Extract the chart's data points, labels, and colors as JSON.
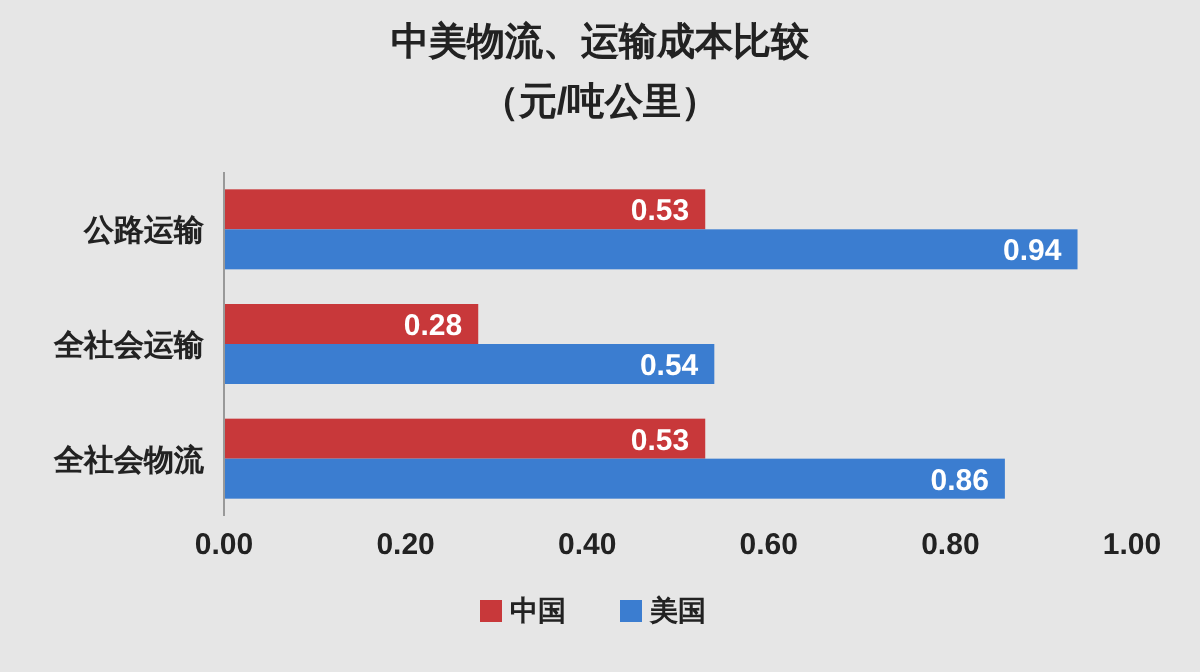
{
  "chart_data": {
    "type": "bar",
    "orientation": "horizontal",
    "title": "中美物流、运输成本比较",
    "subtitle": "（元/吨公里）",
    "categories": [
      "公路运输",
      "全社会运输",
      "全社会物流"
    ],
    "series": [
      {
        "name": "中国",
        "color": "#c8383a",
        "values": [
          0.53,
          0.28,
          0.53
        ]
      },
      {
        "name": "美国",
        "color": "#3b7dd0",
        "values": [
          0.94,
          0.54,
          0.86
        ]
      }
    ],
    "xlim": [
      0,
      1
    ],
    "xticks": [
      {
        "value": 0,
        "label": "0.00"
      },
      {
        "value": 0.2,
        "label": "0.20"
      },
      {
        "value": 0.4,
        "label": "0.40"
      },
      {
        "value": 0.6,
        "label": "0.60"
      },
      {
        "value": 0.8,
        "label": "0.80"
      },
      {
        "value": 1,
        "label": "1.00"
      }
    ],
    "data_labels": true,
    "legend": "bottom"
  }
}
